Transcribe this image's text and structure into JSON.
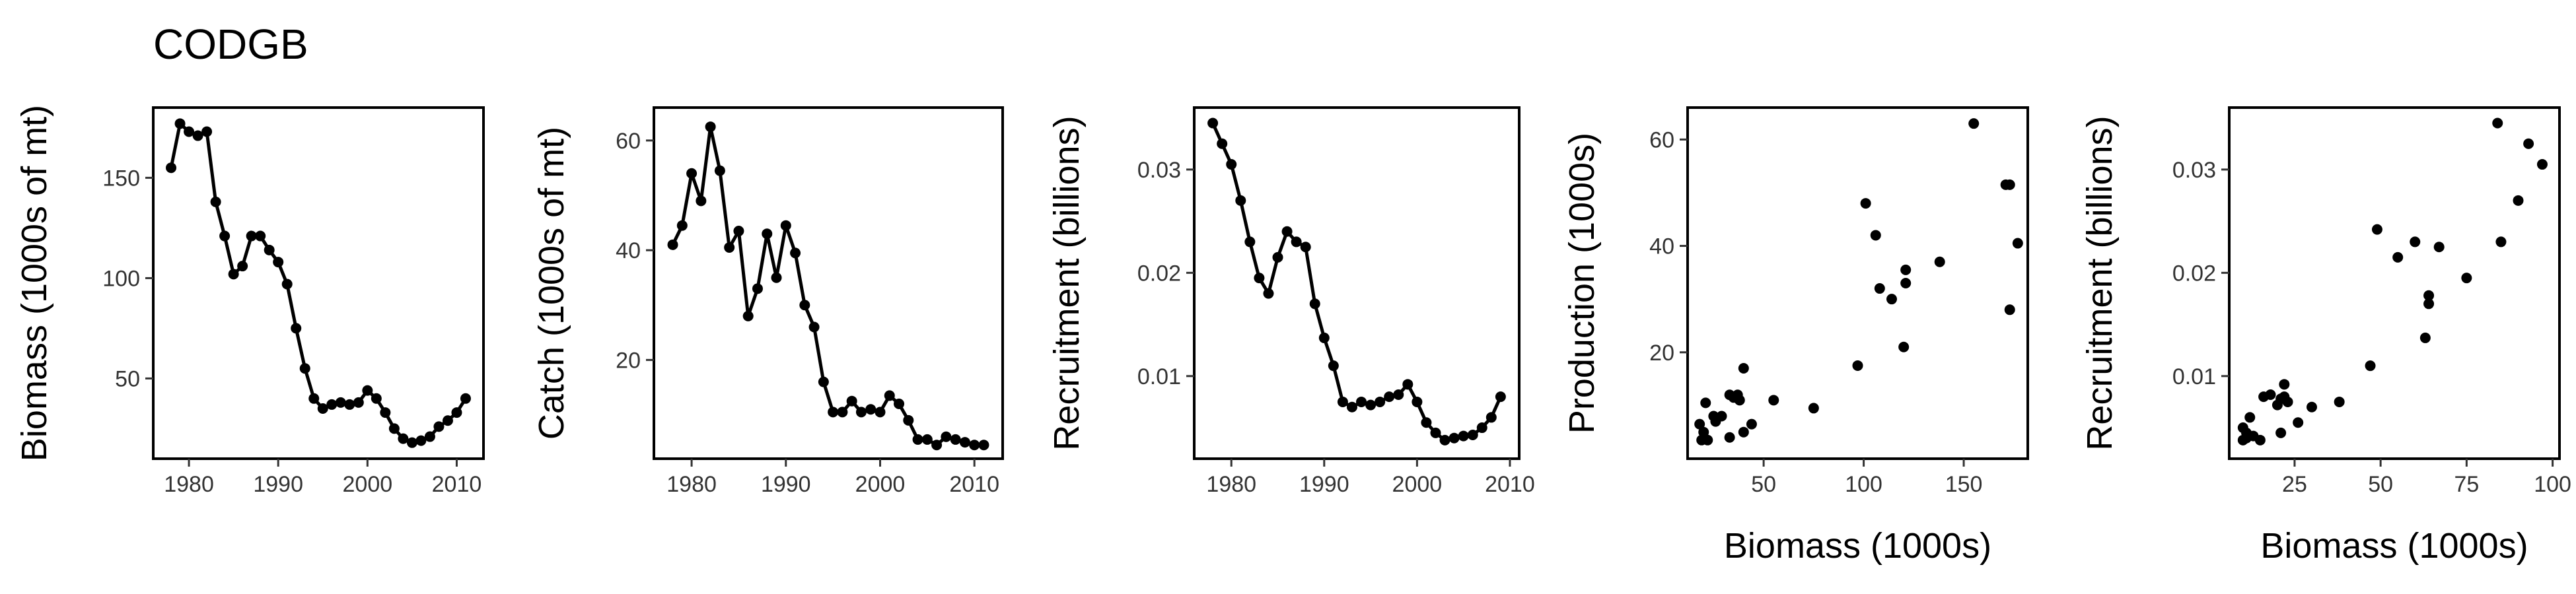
{
  "title": "CODGB",
  "chart_data": [
    {
      "type": "line",
      "xlabel": "",
      "ylabel": "Biomass (1000s of mt)",
      "xlim": [
        1976,
        2013
      ],
      "ylim": [
        10,
        185
      ],
      "xticks": [
        1980,
        1990,
        2000,
        2010
      ],
      "yticks": [
        50,
        100,
        150
      ],
      "grid": false,
      "x": [
        1978,
        1979,
        1980,
        1981,
        1982,
        1983,
        1984,
        1985,
        1986,
        1987,
        1988,
        1989,
        1990,
        1991,
        1992,
        1993,
        1994,
        1995,
        1996,
        1997,
        1998,
        1999,
        2000,
        2001,
        2002,
        2003,
        2004,
        2005,
        2006,
        2007,
        2008,
        2009,
        2010,
        2011
      ],
      "series": [
        {
          "values": [
            155,
            177,
            173,
            171,
            173,
            138,
            121,
            102,
            106,
            121,
            121,
            114,
            108,
            97,
            75,
            55,
            40,
            35,
            37,
            38,
            37,
            38,
            44,
            40,
            33,
            25,
            20,
            18,
            19,
            21,
            26,
            29,
            33,
            40
          ]
        }
      ]
    },
    {
      "type": "line",
      "xlabel": "",
      "ylabel": "Catch (1000s of mt)",
      "xlim": [
        1976,
        2013
      ],
      "ylim": [
        2,
        66
      ],
      "xticks": [
        1980,
        1990,
        2000,
        2010
      ],
      "yticks": [
        20,
        40,
        60
      ],
      "grid": false,
      "x": [
        1978,
        1979,
        1980,
        1981,
        1982,
        1983,
        1984,
        1985,
        1986,
        1987,
        1988,
        1989,
        1990,
        1991,
        1992,
        1993,
        1994,
        1995,
        1996,
        1997,
        1998,
        1999,
        2000,
        2001,
        2002,
        2003,
        2004,
        2005,
        2006,
        2007,
        2008,
        2009,
        2010,
        2011
      ],
      "series": [
        {
          "values": [
            41,
            44.5,
            54,
            49,
            62.5,
            54.5,
            40.5,
            43.5,
            28,
            33,
            43,
            35,
            44.5,
            39.5,
            30,
            26,
            16,
            10.5,
            10.5,
            12.5,
            10.5,
            11,
            10.5,
            13.5,
            12,
            9,
            5.5,
            5.5,
            4.5,
            6,
            5.5,
            5,
            4.5,
            4.5
          ]
        }
      ]
    },
    {
      "type": "line",
      "xlabel": "",
      "ylabel": "Recruitment (billions)",
      "xlim": [
        1976,
        2011
      ],
      "ylim": [
        0.002,
        0.036
      ],
      "xticks": [
        1980,
        1990,
        2000,
        2010
      ],
      "yticks": [
        0.01,
        0.02,
        0.03
      ],
      "ytick_labels": [
        "0.01",
        "0.02",
        "0.03"
      ],
      "grid": false,
      "x": [
        1978,
        1979,
        1980,
        1981,
        1982,
        1983,
        1984,
        1985,
        1986,
        1987,
        1988,
        1989,
        1990,
        1991,
        1992,
        1993,
        1994,
        1995,
        1996,
        1997,
        1998,
        1999,
        2000,
        2001,
        2002,
        2003,
        2004,
        2005,
        2006,
        2007,
        2008,
        2009
      ],
      "series": [
        {
          "values": [
            0.0345,
            0.0325,
            0.0305,
            0.027,
            0.023,
            0.0195,
            0.018,
            0.0215,
            0.024,
            0.023,
            0.0225,
            0.017,
            0.0137,
            0.011,
            0.0075,
            0.007,
            0.0075,
            0.0072,
            0.0075,
            0.008,
            0.0082,
            0.0092,
            0.0075,
            0.0055,
            0.0045,
            0.0038,
            0.004,
            0.0042,
            0.0043,
            0.005,
            0.006,
            0.008
          ]
        }
      ]
    },
    {
      "type": "scatter",
      "xlabel": "Biomass (1000s)",
      "ylabel": "Production (1000s)",
      "xlim": [
        12,
        182
      ],
      "ylim": [
        0,
        66
      ],
      "xticks": [
        50,
        100,
        150
      ],
      "yticks": [
        20,
        40,
        60
      ],
      "grid": false,
      "points": [
        [
          155,
          63
        ],
        [
          171,
          51.5
        ],
        [
          173,
          51.5
        ],
        [
          177,
          40.5
        ],
        [
          173,
          28
        ],
        [
          101,
          48
        ],
        [
          106,
          42
        ],
        [
          121,
          35.5
        ],
        [
          121,
          33
        ],
        [
          114,
          30
        ],
        [
          108,
          32
        ],
        [
          138,
          37
        ],
        [
          97,
          17.5
        ],
        [
          120,
          21
        ],
        [
          75,
          9.5
        ],
        [
          55,
          11
        ],
        [
          40,
          17
        ],
        [
          35,
          11.5
        ],
        [
          37,
          12
        ],
        [
          38,
          11
        ],
        [
          37,
          11.5
        ],
        [
          33,
          12
        ],
        [
          29,
          8
        ],
        [
          25,
          8
        ],
        [
          21,
          10.5
        ],
        [
          19,
          3.5
        ],
        [
          18,
          6.5
        ],
        [
          20,
          5
        ],
        [
          22,
          3.5
        ],
        [
          26,
          7
        ],
        [
          33,
          4
        ],
        [
          40,
          5
        ],
        [
          44,
          6.5
        ]
      ]
    },
    {
      "type": "scatter",
      "xlabel": "Biomass (1000s)",
      "ylabel": "Recruitment (billions)",
      "xlim": [
        6,
        102
      ],
      "ylim": [
        0.002,
        0.036
      ],
      "xticks": [
        25,
        50,
        75,
        100
      ],
      "yticks": [
        0.01,
        0.02,
        0.03
      ],
      "ytick_labels": [
        "0.01",
        "0.02",
        "0.03"
      ],
      "grid": false,
      "points": [
        [
          84,
          0.0345
        ],
        [
          93,
          0.0325
        ],
        [
          97,
          0.0305
        ],
        [
          90,
          0.027
        ],
        [
          85,
          0.023
        ],
        [
          75,
          0.0195
        ],
        [
          49,
          0.0242
        ],
        [
          55,
          0.0215
        ],
        [
          60,
          0.023
        ],
        [
          67,
          0.0225
        ],
        [
          63,
          0.0137
        ],
        [
          64,
          0.017
        ],
        [
          64,
          0.0178
        ],
        [
          47,
          0.011
        ],
        [
          38,
          0.0075
        ],
        [
          30,
          0.007
        ],
        [
          26,
          0.0055
        ],
        [
          22,
          0.0092
        ],
        [
          21,
          0.0078
        ],
        [
          22,
          0.008
        ],
        [
          23,
          0.0075
        ],
        [
          20,
          0.0072
        ],
        [
          18,
          0.0082
        ],
        [
          16,
          0.008
        ],
        [
          11,
          0.004
        ],
        [
          10,
          0.005
        ],
        [
          11,
          0.0045
        ],
        [
          12,
          0.006
        ],
        [
          13,
          0.0042
        ],
        [
          15,
          0.0038
        ],
        [
          21,
          0.0045
        ],
        [
          10,
          0.0038
        ]
      ]
    }
  ]
}
